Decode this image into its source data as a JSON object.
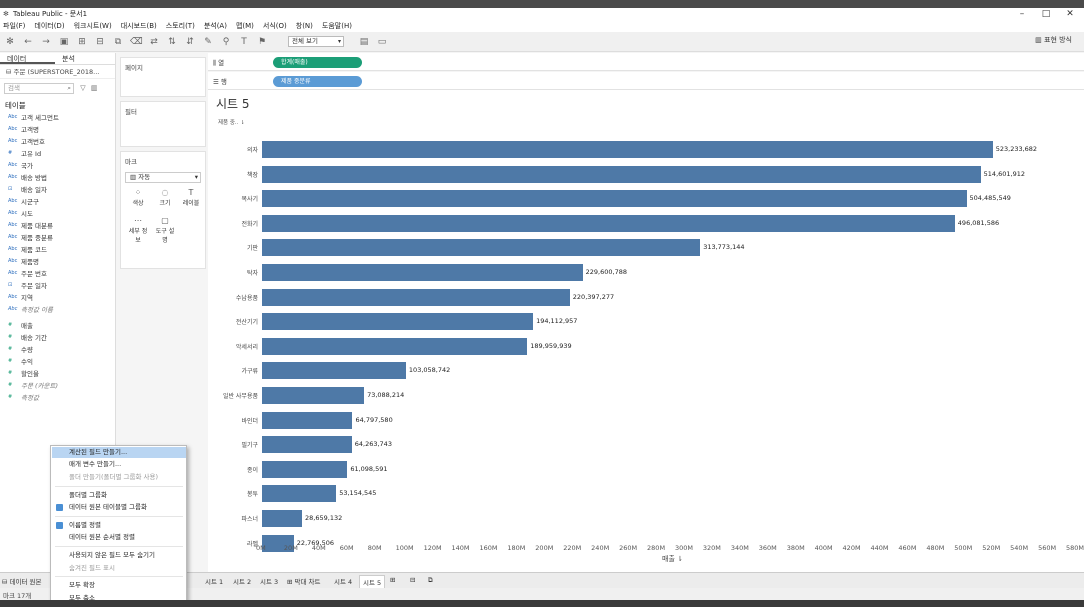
{
  "window": {
    "title": "Tableau Public - 문서1"
  },
  "menu": [
    "파일(F)",
    "데이터(D)",
    "워크시트(W)",
    "대시보드(B)",
    "스토리(T)",
    "분석(A)",
    "맵(M)",
    "서식(O)",
    "창(N)",
    "도움말(H)"
  ],
  "toolbar": {
    "fit": "전체 보기",
    "show_me": "표현 방식"
  },
  "left": {
    "tabs": [
      "데이터",
      "분석"
    ],
    "datasource": "주문 (SUPERSTORE_2018...",
    "search_placeholder": "검색",
    "section_title": "테이블",
    "dims": [
      {
        "t": "Abc",
        "n": "고객 세그먼트"
      },
      {
        "t": "Abc",
        "n": "고객명"
      },
      {
        "t": "Abc",
        "n": "고객번호"
      },
      {
        "t": "#",
        "n": "고유 Id"
      },
      {
        "t": "Abc",
        "n": "국가"
      },
      {
        "t": "Abc",
        "n": "배송 방법"
      },
      {
        "t": "⊡",
        "n": "배송 일자"
      },
      {
        "t": "Abc",
        "n": "시군구"
      },
      {
        "t": "Abc",
        "n": "시도"
      },
      {
        "t": "Abc",
        "n": "제품 대분류"
      },
      {
        "t": "Abc",
        "n": "제품 중분류"
      },
      {
        "t": "Abc",
        "n": "제품 코드"
      },
      {
        "t": "Abc",
        "n": "제품명"
      },
      {
        "t": "Abc",
        "n": "주문 번호"
      },
      {
        "t": "⊡",
        "n": "주문 일자"
      },
      {
        "t": "Abc",
        "n": "지역"
      },
      {
        "t": "Abc",
        "n": "측정값 이름"
      }
    ],
    "meas": [
      {
        "t": "#",
        "n": "매출"
      },
      {
        "t": "#",
        "n": "배송 기간"
      },
      {
        "t": "#",
        "n": "수량"
      },
      {
        "t": "#",
        "n": "수익"
      },
      {
        "t": "#",
        "n": "할인율"
      },
      {
        "t": "#",
        "n": "주문 (카운트)"
      },
      {
        "t": "#",
        "n": "측정값"
      }
    ]
  },
  "shelves": {
    "pages": "페이지",
    "filters": "필터",
    "marks": "마크",
    "mark_type": "자동",
    "mark_buttons": [
      "색상",
      "크기",
      "레이블",
      "세부 정보",
      "도구 설명"
    ],
    "cols_label": "열",
    "rows_label": "행",
    "cols_pill": "합계(매출)",
    "rows_pill": "제품 중분류"
  },
  "sheet": {
    "title": "시트 5",
    "row_header": "제품 중.."
  },
  "chart_data": {
    "type": "bar",
    "orientation": "horizontal",
    "categories": [
      "의자",
      "책장",
      "복사기",
      "전화기",
      "기판",
      "탁자",
      "수납용품",
      "전산기기",
      "악세서리",
      "가구류",
      "일반 사무용품",
      "바인더",
      "필기구",
      "종이",
      "봉투",
      "파스너",
      "라벨"
    ],
    "values": [
      523233682,
      514601912,
      504485549,
      496081586,
      313773144,
      229600788,
      220397277,
      194112957,
      189959939,
      103058742,
      73088214,
      64797580,
      64263743,
      61098591,
      53154545,
      28659132,
      22769506
    ],
    "value_labels": [
      "523,233,682",
      "514,601,912",
      "504,485,549",
      "496,081,586",
      "313,773,144",
      "229,600,788",
      "220,397,277",
      "194,112,957",
      "189,959,939",
      "103,058,742",
      "73,088,214",
      "64,797,580",
      "64,263,743",
      "61,098,591",
      "53,154,545",
      "28,659,132",
      "22,769,506"
    ],
    "xlabel": "매출",
    "ylabel": "제품 중..",
    "xlim": [
      0,
      580000000
    ],
    "ticks": [
      "0M",
      "20M",
      "40M",
      "60M",
      "80M",
      "100M",
      "120M",
      "140M",
      "160M",
      "180M",
      "200M",
      "220M",
      "240M",
      "260M",
      "280M",
      "300M",
      "320M",
      "340M",
      "360M",
      "380M",
      "400M",
      "420M",
      "440M",
      "460M",
      "480M",
      "500M",
      "520M",
      "540M",
      "560M",
      "580M"
    ]
  },
  "context_menu": {
    "items": [
      {
        "label": "계산된 필드 만들기...",
        "state": "highlighted"
      },
      {
        "label": "매개 변수 만들기...",
        "state": "normal"
      },
      {
        "label": "폴더 만들기(폴더별 그룹화 사용)",
        "state": "disabled"
      },
      {
        "label": "폴더별 그룹화",
        "state": "normal"
      },
      {
        "label": "데이터 원본 테이블별 그룹화",
        "state": "checked"
      },
      {
        "label": "이름별 정렬",
        "state": "checked"
      },
      {
        "label": "데이터 원본 순서별 정렬",
        "state": "normal"
      },
      {
        "label": "사용되지 않은 필드 모두 숨기기",
        "state": "normal"
      },
      {
        "label": "숨겨진 필드 표시",
        "state": "disabled"
      },
      {
        "label": "모두 확장",
        "state": "normal"
      },
      {
        "label": "모두 축소",
        "state": "normal"
      }
    ]
  },
  "bottom_tabs": [
    "데이터 원본",
    "시트 1",
    "시트 2",
    "시트 3",
    "막대 차트",
    "시트 4",
    "시트 5"
  ],
  "status": "마크 17개"
}
